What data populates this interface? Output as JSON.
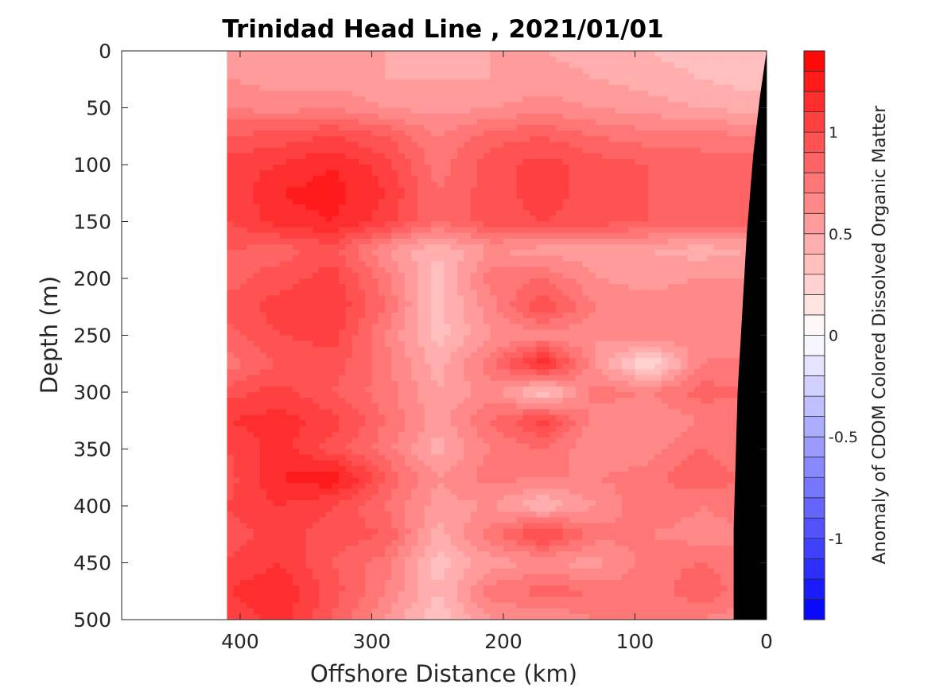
{
  "chart_data": {
    "type": "heatmap",
    "title": "Trinidad Head Line , 2021/01/01",
    "xlabel": "Offshore Distance (km)",
    "ylabel": "Depth (m)",
    "colorbar_label": "Anomaly of CDOM Colored Dissolved Organic Matter",
    "x_reversed": true,
    "y_reversed": true,
    "xlim": [
      490,
      0
    ],
    "ylim": [
      0,
      500
    ],
    "xticks": [
      400,
      300,
      200,
      100,
      0
    ],
    "yticks": [
      0,
      50,
      100,
      150,
      200,
      250,
      300,
      350,
      400,
      450,
      500
    ],
    "clim": [
      -1.4,
      1.4
    ],
    "colorbar_ticks": [
      1,
      0.5,
      0,
      -0.5,
      -1
    ],
    "colormap": {
      "negative": "#0000ff",
      "zero": "#ffffff",
      "positive": "#ff0000",
      "levels": 28
    },
    "data_x_range": [
      410,
      0
    ],
    "x": [
      410,
      370,
      330,
      290,
      250,
      210,
      170,
      130,
      90,
      50,
      10
    ],
    "y": [
      0,
      25,
      50,
      75,
      100,
      125,
      150,
      175,
      200,
      225,
      250,
      275,
      300,
      325,
      350,
      375,
      400,
      425,
      450,
      475,
      500
    ],
    "z": [
      [
        0.55,
        0.55,
        0.5,
        0.5,
        0.45,
        0.5,
        0.5,
        0.45,
        0.4,
        0.35,
        0.3
      ],
      [
        0.6,
        0.55,
        0.55,
        0.5,
        0.5,
        0.5,
        0.55,
        0.5,
        0.45,
        0.4,
        0.35
      ],
      [
        0.7,
        0.65,
        0.7,
        0.6,
        0.55,
        0.6,
        0.65,
        0.6,
        0.55,
        0.5,
        0.45
      ],
      [
        0.9,
        0.95,
        1.0,
        0.9,
        0.7,
        0.85,
        0.9,
        0.8,
        0.75,
        0.75,
        0.7
      ],
      [
        1.05,
        1.1,
        1.2,
        1.05,
        0.75,
        0.95,
        1.05,
        0.95,
        0.9,
        0.85,
        0.85
      ],
      [
        1.0,
        1.2,
        1.25,
        1.1,
        0.8,
        0.95,
        1.05,
        0.95,
        0.9,
        0.9,
        0.85
      ],
      [
        1.0,
        1.15,
        1.2,
        1.05,
        0.8,
        0.95,
        1.0,
        0.95,
        0.9,
        0.85,
        0.85
      ],
      [
        0.9,
        0.85,
        0.95,
        0.6,
        0.4,
        0.6,
        0.55,
        0.55,
        0.5,
        0.45,
        0.5
      ],
      [
        0.85,
        0.95,
        1.05,
        0.75,
        0.35,
        0.75,
        0.8,
        0.6,
        0.55,
        0.6,
        0.6
      ],
      [
        0.95,
        1.05,
        1.1,
        0.8,
        0.35,
        0.65,
        1.0,
        0.7,
        0.65,
        0.7,
        0.65
      ],
      [
        0.85,
        1.0,
        1.05,
        0.7,
        0.35,
        0.6,
        0.65,
        0.6,
        0.7,
        0.65,
        0.6
      ],
      [
        0.75,
        0.9,
        0.95,
        0.75,
        0.45,
        0.75,
        1.2,
        0.6,
        0.15,
        0.7,
        0.75
      ],
      [
        0.95,
        1.05,
        0.9,
        0.75,
        0.5,
        0.65,
        0.3,
        0.75,
        0.7,
        0.85,
        0.8
      ],
      [
        1.1,
        1.15,
        1.05,
        0.8,
        0.55,
        0.8,
        1.05,
        0.65,
        0.6,
        0.7,
        0.75
      ],
      [
        1.0,
        1.15,
        0.95,
        0.75,
        0.45,
        0.7,
        0.8,
        0.6,
        0.65,
        0.8,
        0.7
      ],
      [
        0.95,
        1.2,
        1.3,
        0.9,
        0.6,
        0.75,
        0.7,
        0.7,
        0.75,
        0.9,
        0.75
      ],
      [
        1.0,
        1.1,
        1.0,
        0.8,
        0.55,
        0.6,
        0.4,
        0.6,
        0.8,
        0.7,
        0.75
      ],
      [
        0.95,
        1.05,
        0.95,
        0.9,
        0.45,
        0.75,
        1.05,
        0.75,
        0.7,
        0.65,
        0.7
      ],
      [
        1.0,
        1.1,
        0.9,
        0.75,
        0.35,
        0.55,
        0.6,
        0.55,
        0.75,
        0.8,
        0.7
      ],
      [
        1.1,
        1.2,
        0.95,
        0.7,
        0.4,
        0.75,
        0.85,
        0.8,
        0.7,
        0.9,
        0.7
      ],
      [
        1.0,
        1.15,
        0.9,
        0.6,
        0.3,
        0.6,
        0.6,
        0.7,
        0.7,
        0.7,
        0.6
      ]
    ],
    "bathymetry": {
      "fill": "#000000",
      "points": [
        [
          0,
          0
        ],
        [
          5,
          40
        ],
        [
          10,
          90
        ],
        [
          15,
          160
        ],
        [
          22,
          300
        ],
        [
          25,
          420
        ],
        [
          25,
          500
        ],
        [
          0,
          500
        ]
      ]
    }
  }
}
